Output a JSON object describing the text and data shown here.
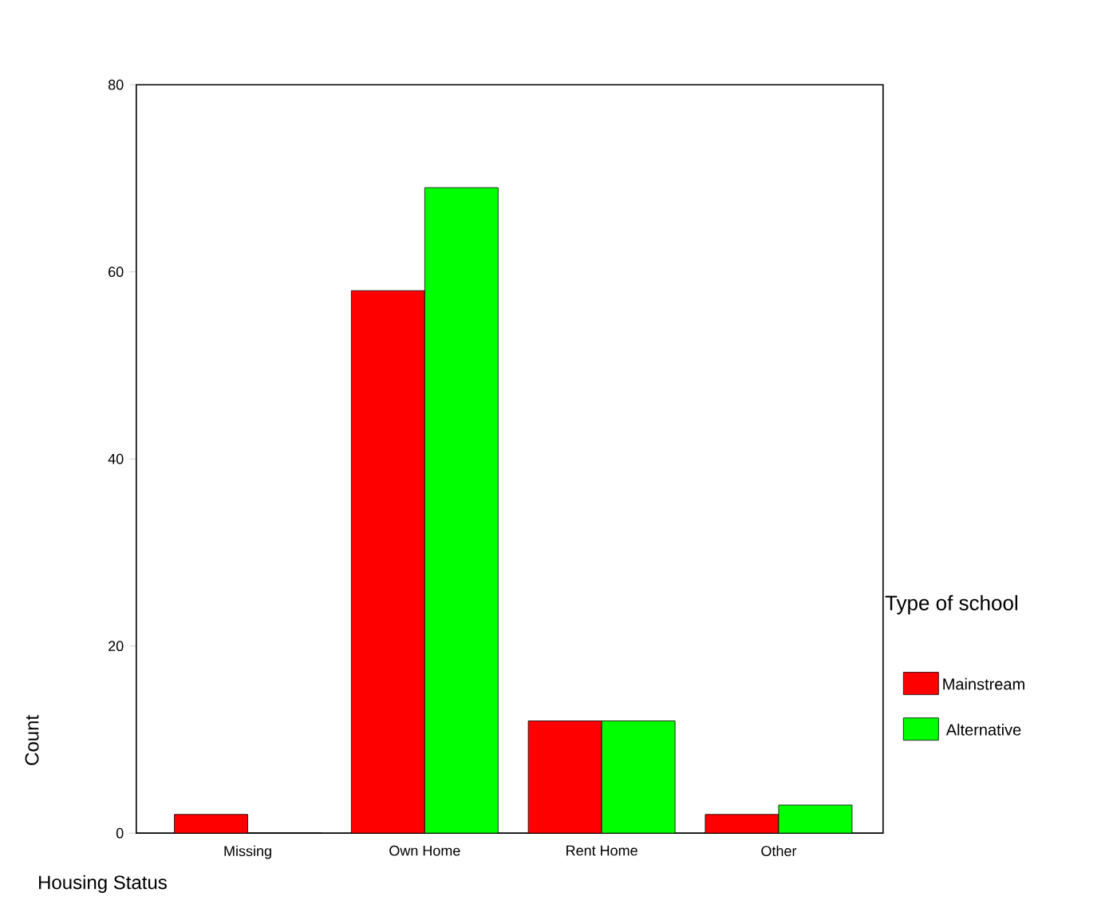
{
  "chart_data": {
    "type": "bar",
    "xlabel": "Housing Status",
    "ylabel": "Count",
    "legend_title": "Type of school",
    "categories": [
      "Missing",
      "Own Home",
      "Rent Home",
      "Other"
    ],
    "series": [
      {
        "name": "Mainstream",
        "color": "#ff0000",
        "values": [
          2,
          58,
          12,
          2
        ]
      },
      {
        "name": "Alternative",
        "color": "#00ff00",
        "values": [
          0,
          69,
          12,
          3
        ]
      }
    ],
    "ylim": [
      0,
      80
    ],
    "yticks": [
      0,
      20,
      40,
      60,
      80
    ],
    "grid": false,
    "legend": "right"
  }
}
